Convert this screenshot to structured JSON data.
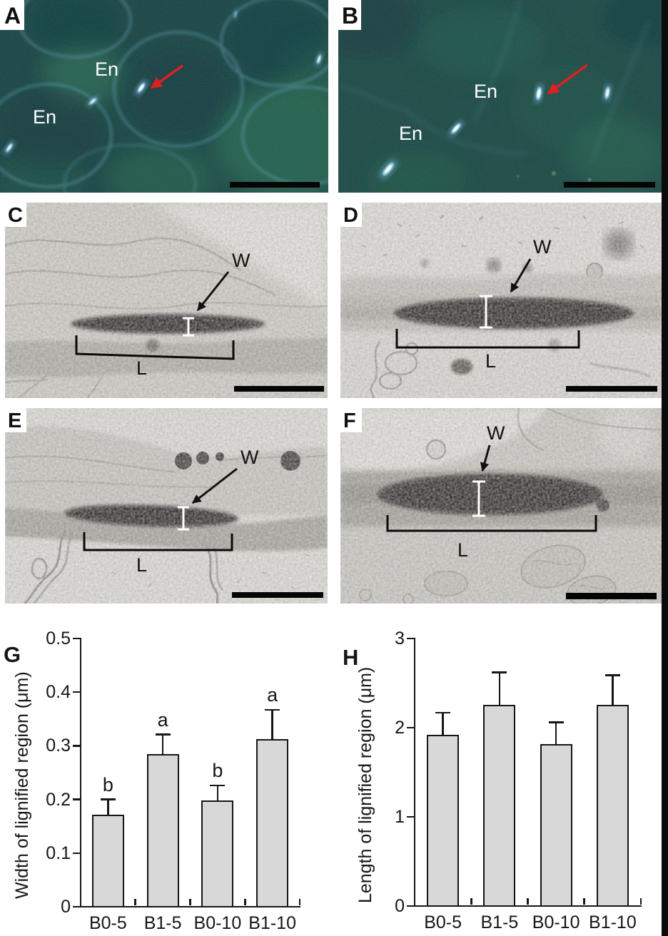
{
  "panels": {
    "a": {
      "letter": "A",
      "annotations": [
        "En",
        "En"
      ]
    },
    "b": {
      "letter": "B",
      "annotations": [
        "En",
        "En"
      ]
    },
    "c": {
      "letter": "C",
      "width_label": "W",
      "length_label": "L"
    },
    "d": {
      "letter": "D",
      "width_label": "W",
      "length_label": "L"
    },
    "e": {
      "letter": "E",
      "width_label": "W",
      "length_label": "L"
    },
    "f": {
      "letter": "F",
      "width_label": "W",
      "length_label": "L"
    }
  },
  "chart_data": [
    {
      "type": "bar",
      "panel": "G",
      "title": "",
      "xlabel": "",
      "ylabel": "Width of lignified region (μm)",
      "categories": [
        "B0-5",
        "B1-5",
        "B0-10",
        "B1-10"
      ],
      "values": [
        0.171,
        0.285,
        0.198,
        0.313
      ],
      "errors_plus": [
        0.029,
        0.036,
        0.028,
        0.054
      ],
      "sig_letters": [
        "b",
        "a",
        "b",
        "a"
      ],
      "ylim": [
        0,
        0.5
      ],
      "yticks": [
        0,
        0.1,
        0.2,
        0.3,
        0.4,
        0.5
      ],
      "ytick_labels": [
        "0",
        "0.1",
        "0.2",
        "0.3",
        "0.4",
        "0.5"
      ],
      "grid": false,
      "legend": null,
      "bar_fill": "#d8d8d8",
      "bar_border": "#161616"
    },
    {
      "type": "bar",
      "panel": "H",
      "title": "",
      "xlabel": "",
      "ylabel": "Length of lignified region (μm)",
      "categories": [
        "B0-5",
        "B1-5",
        "B0-10",
        "B1-10"
      ],
      "values": [
        1.92,
        2.26,
        1.82,
        2.26
      ],
      "errors_plus": [
        0.25,
        0.36,
        0.24,
        0.33
      ],
      "sig_letters": [
        "",
        "",
        "",
        ""
      ],
      "ylim": [
        0,
        3
      ],
      "yticks": [
        0,
        1,
        2,
        3
      ],
      "ytick_labels": [
        "0",
        "1",
        "2",
        "3"
      ],
      "grid": false,
      "legend": null,
      "bar_fill": "#d8d8d8",
      "bar_border": "#161616"
    }
  ],
  "colors": {
    "fluorescence_bg": "#16413f",
    "tem_bg": "#d3d1cc",
    "arrow_red": "#e02020",
    "annotation_black": "#111111",
    "scale_bar": "#050505",
    "bar_fill": "#d8d8d8",
    "right_strip": "#0b0b0b"
  }
}
